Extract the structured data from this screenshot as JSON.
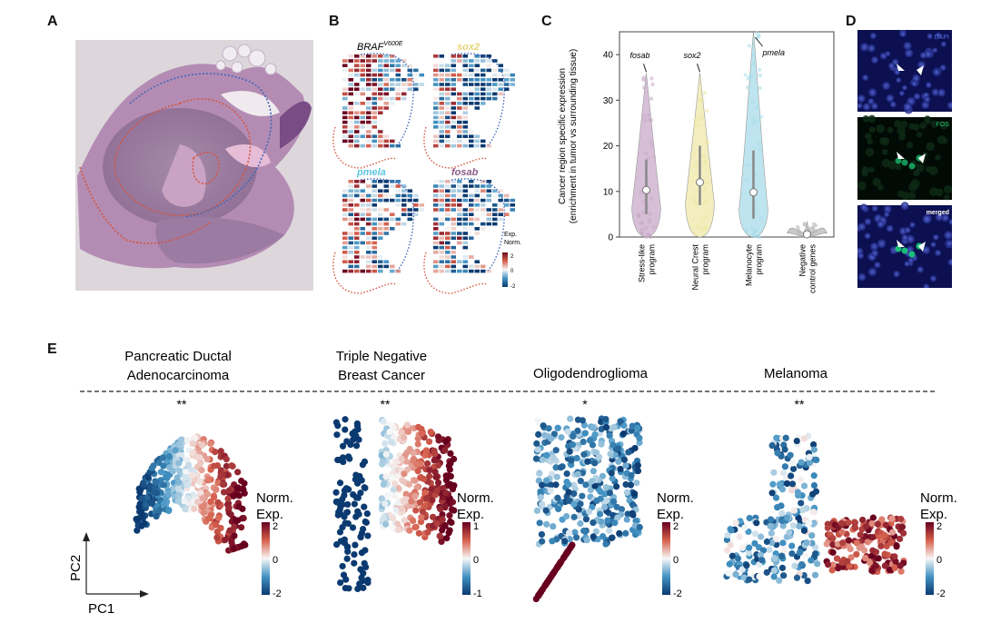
{
  "panels": {
    "a": {
      "letter": "A"
    },
    "b": {
      "letter": "B",
      "maps": [
        {
          "gene": "BRAF",
          "superscript": "V600E",
          "color": "#222222"
        },
        {
          "gene": "sox2",
          "superscript": "",
          "color": "#e8d37a"
        },
        {
          "gene": "pmela",
          "superscript": "",
          "color": "#5cc6e0"
        },
        {
          "gene": "fosab",
          "superscript": "",
          "color": "#8a5a86"
        }
      ],
      "colorbar": {
        "title_line1": "Exp.",
        "title_line2": "Norm.",
        "ticks": [
          "2",
          "0",
          "-2"
        ]
      }
    },
    "c": {
      "letter": "C",
      "chart_data": {
        "type": "violin",
        "ylabel_line1": "Cancer region specific expression",
        "ylabel_line2": "(enrichment in tumor vs surrounding tissue)",
        "ylim": [
          0,
          45
        ],
        "yticks": [
          0,
          10,
          20,
          30,
          40
        ],
        "categories": [
          {
            "label_line1": "Stress-like",
            "label_line2": "program",
            "median": 10.3,
            "q1": 5,
            "q3": 17,
            "max": 36,
            "annotation": "fosab",
            "color": "#c9a9c9"
          },
          {
            "label_line1": "Neural Crest",
            "label_line2": "program",
            "median": 12,
            "q1": 7,
            "q3": 20,
            "max": 36,
            "annotation": "sox2",
            "color": "#efe8a8"
          },
          {
            "label_line1": "Melanocyte",
            "label_line2": "program",
            "median": 9.8,
            "q1": 4,
            "q3": 19,
            "max": 45,
            "annotation": "pmela",
            "color": "#a8dcea"
          },
          {
            "label_line1": "Negative",
            "label_line2": "control genes",
            "median": 0.6,
            "q1": 0.2,
            "q3": 1.2,
            "max": 3.5,
            "annotation": "",
            "color": "#b8b8b8"
          }
        ]
      }
    },
    "d": {
      "letter": "D",
      "labels": [
        "DAPI",
        "FOS",
        "merged"
      ]
    },
    "e": {
      "letter": "E",
      "axis_y": "PC2",
      "axis_x": "PC1",
      "plots": [
        {
          "title_line1": "Pancreatic Ductal",
          "title_line2": "Adenocarcinoma",
          "significance": "**",
          "cb_title1": "Norm.",
          "cb_title2": "Exp.",
          "cb_ticks": [
            "2",
            "0",
            "-2"
          ]
        },
        {
          "title_line1": "Triple Negative",
          "title_line2": "Breast Cancer",
          "significance": "**",
          "cb_title1": "Norm.",
          "cb_title2": "Exp.",
          "cb_ticks": [
            "1",
            "0",
            "-1"
          ]
        },
        {
          "title_line1": "Oligodendroglioma",
          "title_line2": "",
          "significance": "*",
          "cb_title1": "Norm.",
          "cb_title2": "Exp.",
          "cb_ticks": [
            "2",
            "0",
            "-2"
          ]
        },
        {
          "title_line1": "Melanoma",
          "title_line2": "",
          "significance": "**",
          "cb_title1": "Norm.",
          "cb_title2": "Exp.",
          "cb_ticks": [
            "2",
            "0",
            "-2"
          ]
        }
      ]
    }
  }
}
